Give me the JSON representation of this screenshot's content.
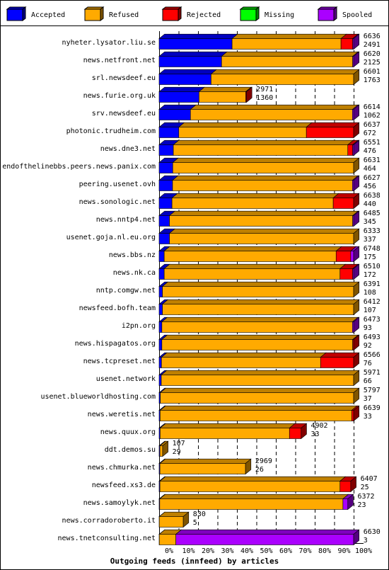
{
  "chart_data": {
    "type": "bar",
    "orientation": "horizontal",
    "stacked": true,
    "title": "Outgoing feeds (innfeed) by articles",
    "legend_placement": "top",
    "series": [
      {
        "name": "Accepted",
        "color": "#0000ff"
      },
      {
        "name": "Refused",
        "color": "#ffaa00"
      },
      {
        "name": "Rejected",
        "color": "#ff0000"
      },
      {
        "name": "Missing",
        "color": "#00ff00"
      },
      {
        "name": "Spooled",
        "color": "#aa00ff"
      }
    ],
    "x_ticks": [
      "0%",
      "10%",
      "20%",
      "30%",
      "40%",
      "50%",
      "60%",
      "70%",
      "80%",
      "90%",
      "100%"
    ],
    "xlim": [
      0,
      100
    ],
    "rows": [
      {
        "name": "nyheter.lysator.liu.se",
        "total": "6636",
        "accepted": "2491",
        "pct": {
          "accepted": 37.5,
          "refused": 56.0,
          "rejected": 6.0,
          "missing": 0,
          "spooled": 0.5
        }
      },
      {
        "name": "news.netfront.net",
        "total": "6620",
        "accepted": "2125",
        "pct": {
          "accepted": 32.1,
          "refused": 67.4,
          "rejected": 0,
          "missing": 0,
          "spooled": 0.5
        }
      },
      {
        "name": "srl.newsdeef.eu",
        "total": "6601",
        "accepted": "1763",
        "pct": {
          "accepted": 26.7,
          "refused": 73.3,
          "rejected": 0,
          "missing": 0,
          "spooled": 0
        }
      },
      {
        "name": "news.furie.org.uk",
        "total": "2971",
        "accepted": "1360",
        "pct": {
          "accepted": 20.5,
          "refused": 24.0,
          "rejected": 0.4,
          "missing": 0,
          "spooled": 0
        }
      },
      {
        "name": "srv.newsdeef.eu",
        "total": "6614",
        "accepted": "1062",
        "pct": {
          "accepted": 16.1,
          "refused": 83.3,
          "rejected": 0,
          "missing": 0,
          "spooled": 0.6
        }
      },
      {
        "name": "photonic.trudheim.com",
        "total": "6637",
        "accepted": "672",
        "pct": {
          "accepted": 10.1,
          "refused": 65.6,
          "rejected": 24.3,
          "missing": 0,
          "spooled": 0
        }
      },
      {
        "name": "news.dne3.net",
        "total": "6551",
        "accepted": "476",
        "pct": {
          "accepted": 7.3,
          "refused": 89.7,
          "rejected": 2.5,
          "missing": 0,
          "spooled": 0.5
        }
      },
      {
        "name": "endofthelinebbs.peers.news.panix.com",
        "total": "6631",
        "accepted": "464",
        "pct": {
          "accepted": 7.0,
          "refused": 93.0,
          "rejected": 0,
          "missing": 0,
          "spooled": 0
        }
      },
      {
        "name": "peering.usenet.ovh",
        "total": "6627",
        "accepted": "456",
        "pct": {
          "accepted": 6.9,
          "refused": 92.5,
          "rejected": 0,
          "missing": 0,
          "spooled": 0.6
        }
      },
      {
        "name": "news.sonologic.net",
        "total": "6638",
        "accepted": "440",
        "pct": {
          "accepted": 6.6,
          "refused": 82.9,
          "rejected": 10.5,
          "missing": 0,
          "spooled": 0
        }
      },
      {
        "name": "news.nntp4.net",
        "total": "6485",
        "accepted": "345",
        "pct": {
          "accepted": 5.3,
          "refused": 94.2,
          "rejected": 0,
          "missing": 0,
          "spooled": 0.5
        }
      },
      {
        "name": "usenet.goja.nl.eu.org",
        "total": "6333",
        "accepted": "337",
        "pct": {
          "accepted": 5.3,
          "refused": 94.7,
          "rejected": 0,
          "missing": 0,
          "spooled": 0
        }
      },
      {
        "name": "news.bbs.nz",
        "total": "6748",
        "accepted": "175",
        "pct": {
          "accepted": 2.6,
          "refused": 88.4,
          "rejected": 7.5,
          "missing": 0,
          "spooled": 1.5
        }
      },
      {
        "name": "news.nk.ca",
        "total": "6510",
        "accepted": "172",
        "pct": {
          "accepted": 2.6,
          "refused": 90.4,
          "rejected": 6.5,
          "missing": 0,
          "spooled": 0.5
        }
      },
      {
        "name": "nntp.comgw.net",
        "total": "6391",
        "accepted": "108",
        "pct": {
          "accepted": 1.7,
          "refused": 98.3,
          "rejected": 0,
          "missing": 0,
          "spooled": 0
        }
      },
      {
        "name": "newsfeed.bofh.team",
        "total": "6412",
        "accepted": "107",
        "pct": {
          "accepted": 1.7,
          "refused": 98.3,
          "rejected": 0,
          "missing": 0,
          "spooled": 0
        }
      },
      {
        "name": "i2pn.org",
        "total": "6473",
        "accepted": "93",
        "pct": {
          "accepted": 1.4,
          "refused": 98.0,
          "rejected": 0,
          "missing": 0,
          "spooled": 0.6
        }
      },
      {
        "name": "news.hispagatos.org",
        "total": "6493",
        "accepted": "92",
        "pct": {
          "accepted": 1.4,
          "refused": 98.1,
          "rejected": 0.5,
          "missing": 0,
          "spooled": 0
        }
      },
      {
        "name": "news.tcpreset.net",
        "total": "6566",
        "accepted": "76",
        "pct": {
          "accepted": 1.2,
          "refused": 81.8,
          "rejected": 17.0,
          "missing": 0,
          "spooled": 0
        }
      },
      {
        "name": "usenet.network",
        "total": "5971",
        "accepted": "66",
        "pct": {
          "accepted": 1.1,
          "refused": 98.9,
          "rejected": 0,
          "missing": 0,
          "spooled": 0
        }
      },
      {
        "name": "usenet.blueworldhosting.com",
        "total": "5797",
        "accepted": "37",
        "pct": {
          "accepted": 0.6,
          "refused": 99.4,
          "rejected": 0,
          "missing": 0,
          "spooled": 0
        }
      },
      {
        "name": "news.weretis.net",
        "total": "6639",
        "accepted": "33",
        "pct": {
          "accepted": 0.5,
          "refused": 98.5,
          "rejected": 1.0,
          "missing": 0,
          "spooled": 0
        }
      },
      {
        "name": "news.quux.org",
        "total": "4902",
        "accepted": "33",
        "pct": {
          "accepted": 0.5,
          "refused": 66.5,
          "rejected": 6.0,
          "missing": 0,
          "spooled": 0
        }
      },
      {
        "name": "ddt.demos.su",
        "total": "107",
        "accepted": "29",
        "pct": {
          "accepted": 0.4,
          "refused": 1.4,
          "rejected": 0,
          "missing": 0,
          "spooled": 0
        }
      },
      {
        "name": "news.chmurka.net",
        "total": "2969",
        "accepted": "26",
        "pct": {
          "accepted": 0.4,
          "refused": 44.0,
          "rejected": 0,
          "missing": 0,
          "spooled": 0
        }
      },
      {
        "name": "newsfeed.xs3.de",
        "total": "6407",
        "accepted": "25",
        "pct": {
          "accepted": 0.4,
          "refused": 92.6,
          "rejected": 5.5,
          "missing": 0,
          "spooled": 0
        }
      },
      {
        "name": "news.samoylyk.net",
        "total": "6372",
        "accepted": "23",
        "pct": {
          "accepted": 0.3,
          "refused": 94.2,
          "rejected": 0,
          "missing": 0,
          "spooled": 2.5
        }
      },
      {
        "name": "news.corradoroberto.it",
        "total": "830",
        "accepted": "5",
        "pct": {
          "accepted": 0.1,
          "refused": 12.3,
          "rejected": 0,
          "missing": 0,
          "spooled": 0
        }
      },
      {
        "name": "news.tnetconsulting.net",
        "total": "6630",
        "accepted": "3",
        "pct": {
          "accepted": 0.1,
          "refused": 8.5,
          "rejected": 0,
          "missing": 0,
          "spooled": 91.4
        }
      }
    ]
  }
}
